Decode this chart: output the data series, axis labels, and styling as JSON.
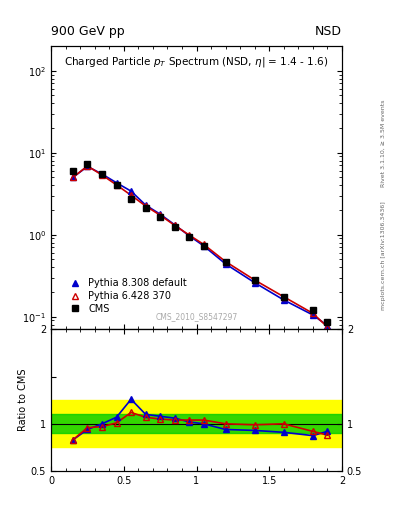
{
  "title_left": "900 GeV pp",
  "title_right": "NSD",
  "plot_title": "Charged Particle p$_T$ Spectrum (NSD, $\\eta$| = 1.4 - 1.6)",
  "watermark": "CMS_2010_S8547297",
  "rivet_label": "Rivet 3.1.10, ≥ 3.5M events",
  "arxiv_label": "mcplots.cern.ch [arXiv:1306.3436]",
  "cms_pt": [
    0.15,
    0.25,
    0.35,
    0.45,
    0.55,
    0.65,
    0.75,
    0.85,
    0.95,
    1.05,
    1.2,
    1.4,
    1.6,
    1.8,
    1.9
  ],
  "cms_y": [
    6.0,
    7.2,
    5.5,
    4.0,
    2.7,
    2.1,
    1.65,
    1.25,
    0.95,
    0.73,
    0.47,
    0.28,
    0.175,
    0.12,
    0.085
  ],
  "py6_pt": [
    0.15,
    0.25,
    0.35,
    0.45,
    0.55,
    0.65,
    0.75,
    0.85,
    0.95,
    1.05,
    1.2,
    1.4,
    1.6,
    1.8,
    1.9
  ],
  "py6_y": [
    5.0,
    6.9,
    5.35,
    4.05,
    3.03,
    2.24,
    1.73,
    1.3,
    0.99,
    0.76,
    0.47,
    0.28,
    0.175,
    0.11,
    0.075
  ],
  "py8_pt": [
    0.15,
    0.25,
    0.35,
    0.45,
    0.55,
    0.65,
    0.75,
    0.85,
    0.95,
    1.05,
    1.2,
    1.4,
    1.6,
    1.8,
    1.9
  ],
  "py8_y": [
    5.0,
    6.8,
    5.5,
    4.3,
    3.4,
    2.3,
    1.78,
    1.32,
    0.97,
    0.73,
    0.44,
    0.26,
    0.16,
    0.105,
    0.078
  ],
  "ratio_py6": [
    0.83,
    0.96,
    0.97,
    1.01,
    1.12,
    1.07,
    1.05,
    1.04,
    1.04,
    1.04,
    1.0,
    0.99,
    1.0,
    0.92,
    0.88
  ],
  "ratio_py8": [
    0.83,
    0.94,
    1.0,
    1.07,
    1.26,
    1.1,
    1.08,
    1.06,
    1.02,
    1.0,
    0.94,
    0.93,
    0.91,
    0.875,
    0.92
  ],
  "ratio_pt": [
    0.15,
    0.25,
    0.35,
    0.45,
    0.55,
    0.65,
    0.75,
    0.85,
    0.95,
    1.05,
    1.2,
    1.4,
    1.6,
    1.8,
    1.9
  ],
  "yellow_band_x": [
    0.0,
    0.5,
    0.5,
    1.5,
    1.5,
    2.0
  ],
  "yellow_band_lo": [
    0.75,
    0.75,
    0.8,
    0.8,
    0.75,
    0.75
  ],
  "yellow_band_hi": [
    1.25,
    1.25,
    1.2,
    1.2,
    1.25,
    1.25
  ],
  "green_band": [
    0.9,
    1.1
  ],
  "xlim": [
    0.0,
    2.0
  ],
  "ylim_main": [
    0.07,
    200
  ],
  "ylim_ratio": [
    0.5,
    2.0
  ],
  "cms_color": "black",
  "py6_color": "#cc0000",
  "py8_color": "#0000cc",
  "yellow_color": "#ffff00",
  "green_color": "#00cc00",
  "bg_color": "#ffffff",
  "legend_labels": [
    "CMS",
    "Pythia 6.428 370",
    "Pythia 8.308 default"
  ]
}
